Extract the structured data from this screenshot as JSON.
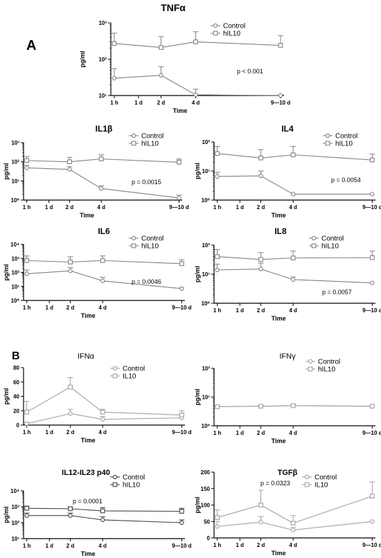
{
  "panel_labels": [
    "A",
    "B"
  ],
  "chart_data": [
    {
      "id": "tnfa",
      "type": "line",
      "title": "TNFα",
      "ylabel": "pg/ml",
      "xlabel": "Time",
      "yscale": "log",
      "ylim_exp": [
        1,
        3
      ],
      "y_ticks": [
        "10¹",
        "10²",
        "10³"
      ],
      "x_ticks": [
        "1 h",
        "1 d",
        "2 d",
        "4 d",
        "9—10 d"
      ],
      "pvalue": "p < 0.001",
      "series": [
        {
          "name": "Control",
          "marker": "circle",
          "color": "#808080",
          "x": [
            "1 h",
            "2 d",
            "4 d",
            "9–10 d"
          ],
          "y": [
            30,
            36,
            10.5,
            10
          ],
          "err": [
            55,
            62,
            15,
            10.5
          ]
        },
        {
          "name": "hIL10",
          "marker": "square",
          "color": "#808080",
          "x": [
            "1 h",
            "2 d",
            "4 d",
            "9–10 d"
          ],
          "y": [
            270,
            210,
            300,
            240
          ],
          "err": [
            520,
            420,
            570,
            440
          ]
        }
      ]
    },
    {
      "id": "il1b",
      "type": "line",
      "title": "IL1β",
      "ylabel": "pg/ml",
      "xlabel": "Time",
      "yscale": "log",
      "ylim_exp": [
        0,
        3
      ],
      "y_ticks": [
        "10⁰",
        "10¹",
        "10²",
        "10³"
      ],
      "x_ticks": [
        "1 h",
        "1 d",
        "2 d",
        "4 d",
        "9—10 d"
      ],
      "pvalue": "p = 0.0015",
      "series": [
        {
          "name": "Control",
          "marker": "circle",
          "color": "#808080",
          "x": [
            "1 h",
            "2 d",
            "4 d",
            "9–10 d"
          ],
          "y": [
            48,
            40,
            4,
            1.3
          ],
          "err": [
            65,
            55,
            5.5,
            1.8
          ]
        },
        {
          "name": "hIL10",
          "marker": "square",
          "color": "#808080",
          "x": [
            "1 h",
            "2 d",
            "4 d",
            "9–10 d"
          ],
          "y": [
            115,
            100,
            140,
            95
          ],
          "err": [
            190,
            170,
            230,
            140
          ]
        }
      ]
    },
    {
      "id": "il4",
      "type": "line",
      "title": "IL4",
      "ylabel": "pg/ml",
      "xlabel": "Time",
      "yscale": "log",
      "ylim_exp": [
        0,
        2
      ],
      "y_ticks": [
        "10⁰",
        "10¹",
        "10²"
      ],
      "x_ticks": [
        "1 h",
        "1 d",
        "2 d",
        "4 d",
        "9—10 d"
      ],
      "pvalue": "p = 0.0054",
      "series": [
        {
          "name": "Control",
          "marker": "circle",
          "color": "#808080",
          "x": [
            "1 h",
            "2 d",
            "4 d",
            "9–10 d"
          ],
          "y": [
            6.5,
            6.8,
            1.6,
            1.6
          ],
          "err": [
            9,
            10,
            1.6,
            1.6
          ]
        },
        {
          "name": "hIL10",
          "marker": "square",
          "color": "#808080",
          "x": [
            "1 h",
            "2 d",
            "4 d",
            "9–10 d"
          ],
          "y": [
            40,
            28,
            36,
            24
          ],
          "err": [
            70,
            55,
            70,
            38
          ]
        }
      ]
    },
    {
      "id": "il6",
      "type": "line",
      "title": "IL6",
      "ylabel": "pg/ml",
      "xlabel": "Time",
      "yscale": "log",
      "ylim_exp": [
        0,
        4
      ],
      "y_ticks": [
        "10⁰",
        "10¹",
        "10²",
        "10³",
        "10⁴"
      ],
      "x_ticks": [
        "1 h",
        "1 d",
        "2 d",
        "4 d",
        "9—10 d"
      ],
      "pvalue": "p = 0.0046",
      "series": [
        {
          "name": "Control",
          "marker": "circle",
          "color": "#808080",
          "x": [
            "1 h",
            "2 d",
            "4 d",
            "9–10 d"
          ],
          "y": [
            80,
            130,
            25,
            7
          ],
          "err": [
            150,
            220,
            45,
            8
          ]
        },
        {
          "name": "hIL10",
          "marker": "square",
          "color": "#808080",
          "x": [
            "1 h",
            "2 d",
            "4 d",
            "9–10 d"
          ],
          "y": [
            700,
            550,
            700,
            420
          ],
          "err": [
            1500,
            1300,
            1500,
            800
          ]
        }
      ]
    },
    {
      "id": "il8",
      "type": "line",
      "title": "IL8",
      "ylabel": "pg/ml",
      "xlabel": "Time",
      "yscale": "log",
      "ylim_exp": [
        0,
        2
      ],
      "y_ticks": [
        "10⁰",
        "10¹",
        "10²"
      ],
      "x_ticks": [
        "1 h",
        "1 d",
        "2 d",
        "4 d",
        "9—10 d"
      ],
      "pvalue": "p = 0.0057",
      "series": [
        {
          "name": "Control",
          "marker": "circle",
          "color": "#808080",
          "x": [
            "1 h",
            "2 d",
            "4 d",
            "9–10 d"
          ],
          "y": [
            14,
            15,
            6.5,
            5
          ],
          "err": [
            22,
            24,
            8,
            5.2
          ]
        },
        {
          "name": "hIL10",
          "marker": "square",
          "color": "#808080",
          "x": [
            "1 h",
            "2 d",
            "4 d",
            "9–10 d"
          ],
          "y": [
            40,
            32,
            36,
            37
          ],
          "err": [
            70,
            55,
            62,
            62
          ]
        }
      ]
    },
    {
      "id": "ifna",
      "type": "line",
      "title": "IFNα",
      "ylabel": "pg/ml",
      "xlabel": "Time",
      "yscale": "linear",
      "ylim": [
        0,
        80
      ],
      "y_ticks": [
        "0",
        "20",
        "40",
        "60",
        "80"
      ],
      "x_ticks": [
        "1 h",
        "1 d",
        "2 d",
        "4 d",
        "9—10 d"
      ],
      "pvalue": "",
      "series": [
        {
          "name": "Control",
          "marker": "circle",
          "color": "#a0a0a0",
          "x": [
            "1 h",
            "2 d",
            "4 d",
            "9–10 d"
          ],
          "y": [
            2,
            16,
            8,
            10
          ],
          "err": [
            4,
            22,
            12,
            15
          ]
        },
        {
          "name": "IL10",
          "marker": "square",
          "color": "#a0a0a0",
          "x": [
            "1 h",
            "2 d",
            "4 d",
            "9–10 d"
          ],
          "y": [
            18,
            53,
            18,
            14
          ],
          "err": [
            33,
            66,
            22,
            20
          ]
        }
      ]
    },
    {
      "id": "ifng",
      "type": "line",
      "title": "IFNγ",
      "ylabel": "pg/ml",
      "xlabel": "Time",
      "yscale": "log",
      "ylim_exp": [
        0,
        2
      ],
      "y_ticks": [
        "10⁰",
        "10¹",
        "10²"
      ],
      "x_ticks": [
        "1 h",
        "1 d",
        "2 d",
        "4 d",
        "9—10 d"
      ],
      "pvalue": "",
      "series": [
        {
          "name": "Control",
          "marker": "circle",
          "color": "#a0a0a0",
          "x": [
            "1 h",
            "2 d",
            "4 d",
            "9–10 d"
          ],
          "y": [
            4.6,
            4.8,
            5.0,
            4.8
          ],
          "err": [
            4.9,
            5.1,
            5.5,
            5.0
          ]
        },
        {
          "name": "hIL10",
          "marker": "square",
          "color": "#a0a0a0",
          "x": [
            "1 h",
            "2 d",
            "4 d",
            "9–10 d"
          ],
          "y": [
            4.6,
            4.8,
            5.0,
            4.8
          ],
          "err": [
            4.9,
            5.1,
            5.5,
            5.0
          ]
        }
      ]
    },
    {
      "id": "il12",
      "type": "line",
      "title": "IL12-IL23 p40",
      "ylabel": "pg/ml",
      "xlabel": "Time",
      "yscale": "log",
      "ylim_exp": [
        1,
        4
      ],
      "y_ticks": [
        "10¹",
        "10²",
        "10³",
        "10⁴"
      ],
      "x_ticks": [
        "1 h",
        "1 d",
        "2 d",
        "4 d",
        "9—10 d"
      ],
      "pvalue": "p = 0.0001",
      "series": [
        {
          "name": "Control",
          "marker": "circle",
          "color": "#404040",
          "x": [
            "1 h",
            "2 d",
            "4 d",
            "9–10 d"
          ],
          "y": [
            280,
            280,
            150,
            100
          ],
          "err": [
            400,
            400,
            240,
            150
          ]
        },
        {
          "name": "hIL10",
          "marker": "square",
          "color": "#404040",
          "x": [
            "1 h",
            "2 d",
            "4 d",
            "9–10 d"
          ],
          "y": [
            800,
            750,
            550,
            520
          ],
          "err": [
            1100,
            1000,
            900,
            800
          ]
        }
      ]
    },
    {
      "id": "tgfb",
      "type": "line",
      "title": "TGFβ",
      "ylabel": "pg/ml",
      "xlabel": "Time",
      "yscale": "linear",
      "ylim": [
        0,
        200
      ],
      "y_ticks": [
        "0",
        "50",
        "100",
        "150",
        "200"
      ],
      "x_ticks": [
        "1 h",
        "1 d",
        "2 d",
        "4 d",
        "9—10 d"
      ],
      "pvalue": "p = 0.0323",
      "series": [
        {
          "name": "Control",
          "marker": "circle",
          "color": "#a0a0a0",
          "x": [
            "1 h",
            "2 d",
            "4 d",
            "9–10 d"
          ],
          "y": [
            35,
            48,
            24,
            50
          ],
          "err": [
            50,
            65,
            32,
            52
          ]
        },
        {
          "name": "IL10",
          "marker": "square",
          "color": "#a0a0a0",
          "x": [
            "1 h",
            "2 d",
            "4 d",
            "9–10 d"
          ],
          "y": [
            62,
            100,
            45,
            127
          ],
          "err": [
            85,
            145,
            68,
            170
          ]
        }
      ]
    }
  ]
}
